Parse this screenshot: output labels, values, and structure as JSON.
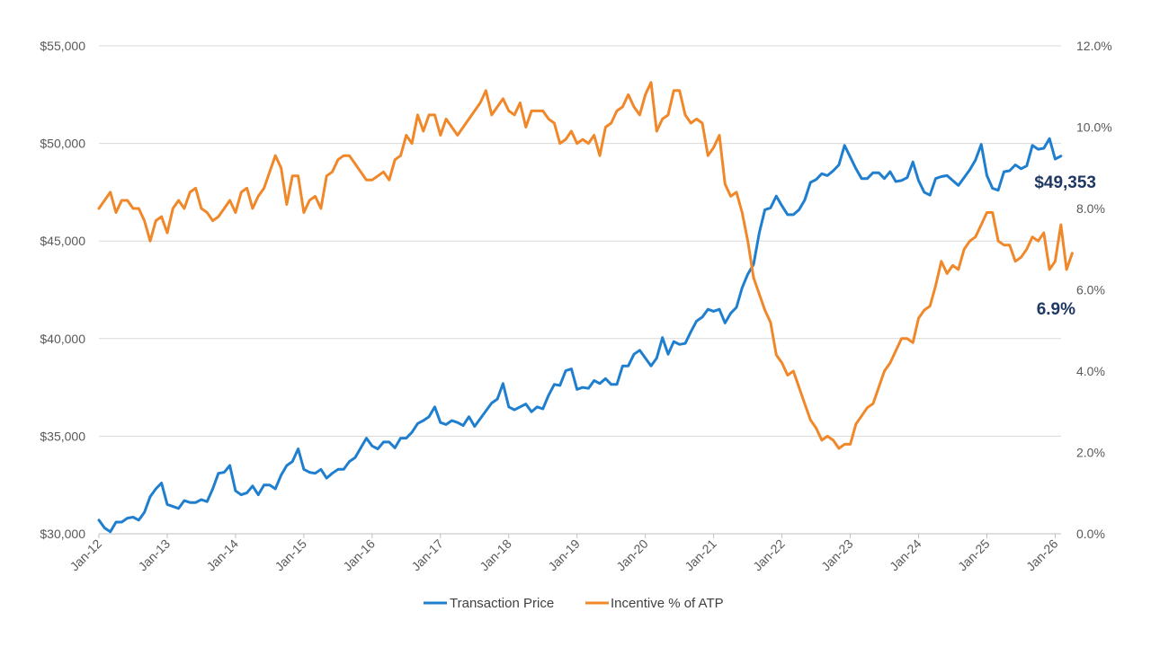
{
  "chart_data": {
    "type": "line",
    "x_start": "Jan-12",
    "x_ticks": [
      "Jan-12",
      "Jan-13",
      "Jan-14",
      "Jan-15",
      "Jan-16",
      "Jan-17",
      "Jan-18",
      "Jan-19",
      "Jan-20",
      "Jan-21",
      "Jan-22",
      "Jan-23",
      "Jan-24",
      "Jan-25",
      "Jan-26"
    ],
    "y_left": {
      "ticks": [
        "$30,000",
        "$35,000",
        "$40,000",
        "$45,000",
        "$50,000",
        "$55,000"
      ],
      "range": [
        30000,
        55000
      ]
    },
    "y_right": {
      "ticks": [
        "0.0%",
        "2.0%",
        "4.0%",
        "6.0%",
        "8.0%",
        "10.0%",
        "12.0%"
      ],
      "range": [
        0,
        12
      ]
    },
    "grid": true,
    "legend_position": "bottom",
    "end_labels": {
      "transaction_price": "$49,353",
      "incentive": "6.9%"
    },
    "colors": {
      "transaction_price": "#1f7fce",
      "incentive": "#f0882a"
    },
    "series": [
      {
        "name": "Transaction Price",
        "axis": "left",
        "values": [
          30700,
          30300,
          30100,
          30600,
          30600,
          30800,
          30850,
          30700,
          31100,
          31900,
          32300,
          32600,
          31500,
          31400,
          31300,
          31700,
          31600,
          31600,
          31750,
          31650,
          32300,
          33100,
          33150,
          33500,
          32200,
          32000,
          32100,
          32450,
          32000,
          32500,
          32500,
          32300,
          33000,
          33500,
          33700,
          34350,
          33300,
          33150,
          33100,
          33300,
          32850,
          33100,
          33300,
          33300,
          33700,
          33900,
          34400,
          34900,
          34500,
          34350,
          34700,
          34700,
          34400,
          34900,
          34900,
          35200,
          35650,
          35800,
          36000,
          36500,
          35700,
          35600,
          35800,
          35700,
          35550,
          36000,
          35500,
          35900,
          36300,
          36700,
          36900,
          37700,
          36500,
          36350,
          36500,
          36650,
          36250,
          36500,
          36400,
          37100,
          37650,
          37600,
          38350,
          38450,
          37400,
          37500,
          37450,
          37850,
          37700,
          37950,
          37650,
          37650,
          38600,
          38600,
          39200,
          39400,
          39000,
          38600,
          39000,
          40050,
          39200,
          39850,
          39700,
          39750,
          40350,
          40900,
          41100,
          41500,
          41400,
          41500,
          40800,
          41300,
          41600,
          42600,
          43300,
          43800,
          45400,
          46600,
          46700,
          47300,
          46800,
          46350,
          46350,
          46600,
          47100,
          48000,
          48150,
          48450,
          48350,
          48600,
          48900,
          49900,
          49300,
          48700,
          48200,
          48200,
          48500,
          48500,
          48200,
          48550,
          48050,
          48100,
          48250,
          49050,
          48100,
          47500,
          47350,
          48200,
          48300,
          48350,
          48100,
          47850,
          48250,
          48650,
          49150,
          49950,
          48350,
          47700,
          47600,
          48550,
          48600,
          48900,
          48700,
          48850,
          49900,
          49700,
          49750,
          50250,
          49200,
          49353
        ]
      },
      {
        "name": "Incentive % of ATP",
        "axis": "right",
        "values": [
          8.0,
          8.2,
          8.4,
          7.9,
          8.2,
          8.2,
          8.0,
          8.0,
          7.7,
          7.2,
          7.7,
          7.8,
          7.4,
          8.0,
          8.2,
          8.0,
          8.4,
          8.5,
          8.0,
          7.9,
          7.7,
          7.8,
          8.0,
          8.2,
          7.9,
          8.4,
          8.5,
          8.0,
          8.3,
          8.5,
          8.9,
          9.3,
          9.0,
          8.1,
          8.8,
          8.8,
          7.9,
          8.2,
          8.3,
          8.0,
          8.8,
          8.9,
          9.2,
          9.3,
          9.3,
          9.1,
          8.9,
          8.7,
          8.7,
          8.8,
          8.9,
          8.7,
          9.2,
          9.3,
          9.8,
          9.6,
          10.3,
          9.9,
          10.3,
          10.3,
          9.8,
          10.2,
          10.0,
          9.8,
          10.0,
          10.2,
          10.4,
          10.6,
          10.9,
          10.3,
          10.5,
          10.7,
          10.4,
          10.3,
          10.6,
          10.0,
          10.4,
          10.4,
          10.4,
          10.2,
          10.1,
          9.6,
          9.7,
          9.9,
          9.6,
          9.7,
          9.6,
          9.8,
          9.3,
          10.0,
          10.1,
          10.4,
          10.5,
          10.8,
          10.5,
          10.3,
          10.8,
          11.1,
          9.9,
          10.2,
          10.3,
          10.9,
          10.9,
          10.3,
          10.1,
          10.2,
          10.1,
          9.3,
          9.5,
          9.8,
          8.6,
          8.3,
          8.4,
          7.9,
          7.2,
          6.3,
          5.9,
          5.5,
          5.2,
          4.4,
          4.2,
          3.9,
          4.0,
          3.6,
          3.2,
          2.8,
          2.6,
          2.3,
          2.4,
          2.3,
          2.1,
          2.2,
          2.2,
          2.7,
          2.9,
          3.1,
          3.2,
          3.6,
          4.0,
          4.2,
          4.5,
          4.8,
          4.8,
          4.7,
          5.3,
          5.5,
          5.6,
          6.1,
          6.7,
          6.4,
          6.6,
          6.5,
          7.0,
          7.2,
          7.3,
          7.6,
          7.9,
          7.9,
          7.2,
          7.1,
          7.1,
          6.7,
          6.8,
          7.0,
          7.3,
          7.2,
          7.4,
          6.5,
          6.7,
          7.6,
          6.5,
          6.9
        ]
      }
    ]
  }
}
